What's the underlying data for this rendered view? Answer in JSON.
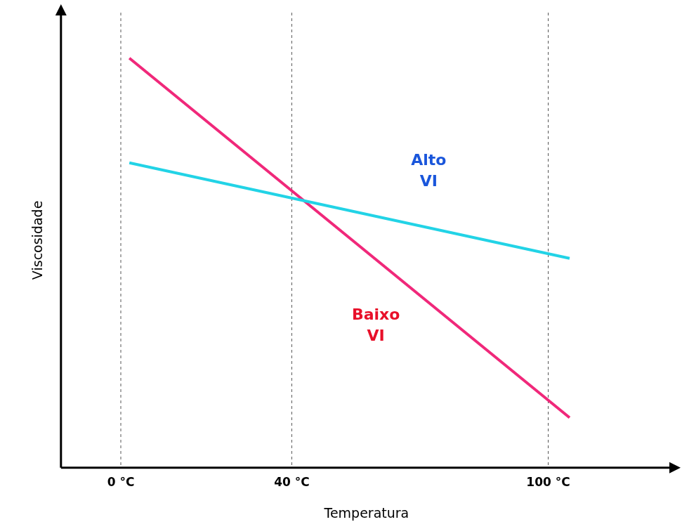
{
  "chart_data": {
    "type": "line",
    "x": [
      2,
      105
    ],
    "series": [
      {
        "name": "Alto VI",
        "color": "#22d3e6",
        "values": [
          67,
          46
        ]
      },
      {
        "name": "Baixo VI",
        "color": "#f0287a",
        "values": [
          90,
          11
        ]
      }
    ],
    "x_label": "Temperatura",
    "y_label": "Viscosidade",
    "xlim": [
      -14,
      129
    ],
    "xticks": [
      {
        "value": 0,
        "label": "0 °C"
      },
      {
        "value": 40,
        "label": "40 °C"
      },
      {
        "value": 100,
        "label": "100 °C"
      }
    ],
    "ylim": [
      0,
      100
    ],
    "grid": true,
    "tick_labels": "x"
  }
}
